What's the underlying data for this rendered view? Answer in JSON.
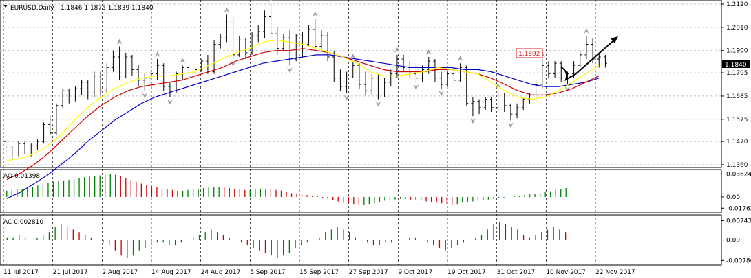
{
  "header": {
    "symbol": "EURUSD,Daily",
    "ohlc": "1.1846 1.1875 1.1839 1.1840"
  },
  "colors": {
    "fast_ma": "#ffff00",
    "mid_ma": "#cc0000",
    "slow_ma": "#0000cc",
    "up_bar": "#008000",
    "down_bar": "#cc0000",
    "price_tag": "#000000",
    "annotation": "#e02020"
  },
  "chart_data": [
    {
      "type": "bar",
      "title": "EURUSD,Daily",
      "subtitle": "1.1846 1.1875 1.1839 1.1840",
      "ylim": [
        1.136,
        1.212
      ],
      "y_ticks": [
        "1.2120",
        "1.2010",
        "1.1900",
        "1.1795",
        "1.1685",
        "1.1575",
        "1.1470",
        "1.1360"
      ],
      "x_ticks": [
        "11 Jul 2017",
        "21 Jul 2017",
        "2 Aug 2017",
        "14 Aug 2017",
        "24 Aug 2017",
        "5 Sep 2017",
        "15 Sep 2017",
        "27 Sep 2017",
        "9 Oct 2017",
        "19 Oct 2017",
        "31 Oct 2017",
        "10 Nov 2017",
        "22 Nov 2017"
      ],
      "last_price": "1.1840",
      "annotation_price": "1.1892",
      "ohlc": [
        [
          1.147,
          1.148,
          1.141,
          1.144
        ],
        [
          1.144,
          1.145,
          1.139,
          1.142
        ],
        [
          1.142,
          1.147,
          1.14,
          1.146
        ],
        [
          1.146,
          1.147,
          1.141,
          1.143
        ],
        [
          1.143,
          1.146,
          1.14,
          1.145
        ],
        [
          1.145,
          1.148,
          1.143,
          1.147
        ],
        [
          1.147,
          1.156,
          1.146,
          1.155
        ],
        [
          1.155,
          1.159,
          1.15,
          1.151
        ],
        [
          1.151,
          1.165,
          1.15,
          1.164
        ],
        [
          1.164,
          1.172,
          1.163,
          1.171
        ],
        [
          1.171,
          1.172,
          1.165,
          1.168
        ],
        [
          1.168,
          1.173,
          1.166,
          1.172
        ],
        [
          1.172,
          1.176,
          1.169,
          1.175
        ],
        [
          1.175,
          1.176,
          1.167,
          1.17
        ],
        [
          1.17,
          1.18,
          1.168,
          1.178
        ],
        [
          1.178,
          1.18,
          1.169,
          1.171
        ],
        [
          1.171,
          1.184,
          1.17,
          1.182
        ],
        [
          1.182,
          1.19,
          1.18,
          1.187
        ],
        [
          1.187,
          1.192,
          1.176,
          1.178
        ],
        [
          1.178,
          1.189,
          1.177,
          1.187
        ],
        [
          1.187,
          1.188,
          1.178,
          1.181
        ],
        [
          1.181,
          1.183,
          1.173,
          1.176
        ],
        [
          1.176,
          1.179,
          1.171,
          1.177
        ],
        [
          1.177,
          1.181,
          1.174,
          1.179
        ],
        [
          1.179,
          1.186,
          1.176,
          1.183
        ],
        [
          1.183,
          1.184,
          1.171,
          1.173
        ],
        [
          1.173,
          1.175,
          1.168,
          1.171
        ],
        [
          1.171,
          1.18,
          1.17,
          1.179
        ],
        [
          1.179,
          1.183,
          1.176,
          1.182
        ],
        [
          1.182,
          1.183,
          1.177,
          1.178
        ],
        [
          1.178,
          1.182,
          1.176,
          1.181
        ],
        [
          1.181,
          1.186,
          1.18,
          1.185
        ],
        [
          1.185,
          1.188,
          1.179,
          1.18
        ],
        [
          1.18,
          1.195,
          1.179,
          1.193
        ],
        [
          1.193,
          1.198,
          1.191,
          1.196
        ],
        [
          1.196,
          1.207,
          1.194,
          1.204
        ],
        [
          1.204,
          1.206,
          1.186,
          1.188
        ],
        [
          1.188,
          1.197,
          1.187,
          1.195
        ],
        [
          1.195,
          1.196,
          1.186,
          1.189
        ],
        [
          1.189,
          1.199,
          1.188,
          1.197
        ],
        [
          1.197,
          1.202,
          1.194,
          1.199
        ],
        [
          1.199,
          1.209,
          1.196,
          1.206
        ],
        [
          1.206,
          1.212,
          1.196,
          1.198
        ],
        [
          1.198,
          1.201,
          1.188,
          1.191
        ],
        [
          1.191,
          1.198,
          1.19,
          1.196
        ],
        [
          1.196,
          1.2,
          1.183,
          1.186
        ],
        [
          1.186,
          1.198,
          1.185,
          1.197
        ],
        [
          1.197,
          1.199,
          1.187,
          1.193
        ],
        [
          1.193,
          1.202,
          1.192,
          1.2
        ],
        [
          1.2,
          1.205,
          1.19,
          1.192
        ],
        [
          1.192,
          1.2,
          1.191,
          1.197
        ],
        [
          1.197,
          1.199,
          1.185,
          1.187
        ],
        [
          1.187,
          1.19,
          1.175,
          1.177
        ],
        [
          1.177,
          1.181,
          1.171,
          1.173
        ],
        [
          1.173,
          1.18,
          1.17,
          1.178
        ],
        [
          1.178,
          1.185,
          1.177,
          1.183
        ],
        [
          1.183,
          1.184,
          1.172,
          1.174
        ],
        [
          1.174,
          1.18,
          1.169,
          1.171
        ],
        [
          1.171,
          1.179,
          1.169,
          1.177
        ],
        [
          1.177,
          1.179,
          1.167,
          1.169
        ],
        [
          1.169,
          1.177,
          1.168,
          1.175
        ],
        [
          1.175,
          1.181,
          1.173,
          1.179
        ],
        [
          1.179,
          1.188,
          1.177,
          1.186
        ],
        [
          1.186,
          1.188,
          1.18,
          1.182
        ],
        [
          1.182,
          1.185,
          1.177,
          1.179
        ],
        [
          1.179,
          1.184,
          1.175,
          1.177
        ],
        [
          1.177,
          1.183,
          1.175,
          1.181
        ],
        [
          1.181,
          1.187,
          1.179,
          1.185
        ],
        [
          1.185,
          1.186,
          1.175,
          1.177
        ],
        [
          1.177,
          1.18,
          1.172,
          1.174
        ],
        [
          1.174,
          1.18,
          1.173,
          1.179
        ],
        [
          1.179,
          1.182,
          1.174,
          1.176
        ],
        [
          1.176,
          1.184,
          1.175,
          1.182
        ],
        [
          1.182,
          1.183,
          1.164,
          1.165
        ],
        [
          1.165,
          1.168,
          1.159,
          1.166
        ],
        [
          1.166,
          1.167,
          1.16,
          1.163
        ],
        [
          1.163,
          1.168,
          1.162,
          1.167
        ],
        [
          1.167,
          1.168,
          1.161,
          1.163
        ],
        [
          1.163,
          1.171,
          1.162,
          1.169
        ],
        [
          1.169,
          1.17,
          1.161,
          1.164
        ],
        [
          1.164,
          1.165,
          1.157,
          1.16
        ],
        [
          1.16,
          1.165,
          1.158,
          1.163
        ],
        [
          1.163,
          1.168,
          1.162,
          1.167
        ],
        [
          1.167,
          1.17,
          1.165,
          1.168
        ],
        [
          1.168,
          1.176,
          1.166,
          1.174
        ],
        [
          1.174,
          1.186,
          1.172,
          1.183
        ],
        [
          1.183,
          1.185,
          1.177,
          1.179
        ],
        [
          1.179,
          1.185,
          1.177,
          1.184
        ],
        [
          1.184,
          1.185,
          1.175,
          1.177
        ],
        [
          1.177,
          1.18,
          1.174,
          1.179
        ],
        [
          1.179,
          1.185,
          1.177,
          1.183
        ],
        [
          1.183,
          1.19,
          1.182,
          1.188
        ],
        [
          1.188,
          1.197,
          1.186,
          1.193
        ],
        [
          1.193,
          1.196,
          1.184,
          1.186
        ],
        [
          1.186,
          1.189,
          1.182,
          1.187
        ],
        [
          1.187,
          1.188,
          1.182,
          1.184
        ]
      ],
      "ma_fast": [
        1.138,
        1.139,
        1.141,
        1.145,
        1.15,
        1.157,
        1.163,
        1.168,
        1.172,
        1.175,
        1.177,
        1.178,
        1.178,
        1.179,
        1.18,
        1.183,
        1.186,
        1.189,
        1.191,
        1.194,
        1.195,
        1.194,
        1.193,
        1.191,
        1.189,
        1.187,
        1.184,
        1.18,
        1.178,
        1.178,
        1.179,
        1.18,
        1.182,
        1.181,
        1.18,
        1.179,
        1.175,
        1.171,
        1.168,
        1.167,
        1.168,
        1.171,
        1.175,
        1.179,
        1.183
      ],
      "ma_mid": [
        1.129,
        1.132,
        1.136,
        1.141,
        1.147,
        1.153,
        1.159,
        1.164,
        1.168,
        1.171,
        1.173,
        1.174,
        1.175,
        1.176,
        1.178,
        1.18,
        1.182,
        1.185,
        1.187,
        1.189,
        1.19,
        1.19,
        1.191,
        1.19,
        1.189,
        1.187,
        1.185,
        1.183,
        1.181,
        1.18,
        1.18,
        1.18,
        1.181,
        1.181,
        1.18,
        1.179,
        1.177,
        1.174,
        1.171,
        1.169,
        1.169,
        1.17,
        1.172,
        1.175,
        1.178
      ],
      "ma_slow": [
        1.12,
        1.123,
        1.127,
        1.131,
        1.136,
        1.141,
        1.147,
        1.152,
        1.157,
        1.161,
        1.165,
        1.168,
        1.17,
        1.172,
        1.174,
        1.176,
        1.178,
        1.18,
        1.182,
        1.184,
        1.185,
        1.186,
        1.187,
        1.188,
        1.188,
        1.187,
        1.186,
        1.185,
        1.184,
        1.183,
        1.182,
        1.182,
        1.182,
        1.182,
        1.181,
        1.181,
        1.18,
        1.178,
        1.176,
        1.174,
        1.173,
        1.173,
        1.174,
        1.175,
        1.177
      ]
    },
    {
      "type": "bar",
      "title": "AO 0.01398",
      "ylim": [
        -0.0195,
        0.0378
      ],
      "y_ticks": [
        "0.03624",
        "0.00",
        "-0.01762"
      ],
      "values": [
        0.01,
        0.011,
        0.012,
        0.013,
        0.014,
        0.016,
        0.018,
        0.02,
        0.022,
        0.024,
        0.025,
        0.026,
        0.027,
        0.028,
        0.03,
        0.031,
        0.032,
        0.033,
        0.034,
        0.035,
        0.036,
        0.035,
        0.033,
        0.03,
        0.027,
        0.024,
        0.021,
        0.019,
        0.017,
        0.015,
        0.013,
        0.012,
        0.011,
        0.01,
        0.01,
        0.011,
        0.012,
        0.013,
        0.014,
        0.015,
        0.015,
        0.016,
        0.015,
        0.014,
        0.013,
        0.012,
        0.011,
        0.011,
        0.012,
        0.013,
        0.013,
        0.012,
        0.011,
        0.01,
        0.008,
        0.006,
        0.005,
        0.004,
        0.003,
        0.002,
        0.001,
        -0.001,
        -0.003,
        -0.005,
        -0.007,
        -0.009,
        -0.01,
        -0.011,
        -0.012,
        -0.012,
        -0.011,
        -0.01,
        -0.008,
        -0.006,
        -0.005,
        -0.004,
        -0.003,
        -0.003,
        -0.004,
        -0.005,
        -0.006,
        -0.007,
        -0.008,
        -0.009,
        -0.01,
        -0.011,
        -0.012,
        -0.011,
        -0.009,
        -0.008,
        -0.007,
        -0.006,
        -0.005,
        -0.004,
        -0.003,
        -0.002,
        -0.001,
        0.0,
        0.001,
        0.002,
        0.003,
        0.004,
        0.005,
        0.006,
        0.008,
        0.009,
        0.011,
        0.012,
        0.014
      ]
    },
    {
      "type": "bar",
      "title": "AC 0.002810",
      "ylim": [
        -0.0083,
        0.0078
      ],
      "y_ticks": [
        "0.007433",
        "0.00",
        "-0.00786"
      ],
      "values": [
        0.001,
        0.001,
        0.002,
        0.001,
        0.0,
        0.001,
        0.002,
        0.003,
        0.005,
        0.006,
        0.005,
        0.004,
        0.003,
        0.002,
        0.001,
        0.0,
        -0.001,
        -0.002,
        -0.004,
        -0.006,
        -0.007,
        -0.006,
        -0.004,
        -0.003,
        -0.002,
        -0.001,
        -0.001,
        -0.002,
        -0.002,
        -0.001,
        0.0,
        0.001,
        0.002,
        0.003,
        0.004,
        0.003,
        0.002,
        0.001,
        0.0,
        -0.001,
        -0.002,
        -0.003,
        -0.004,
        -0.005,
        -0.006,
        -0.007,
        -0.006,
        -0.005,
        -0.003,
        -0.002,
        -0.001,
        0.0,
        0.001,
        0.003,
        0.004,
        0.005,
        0.004,
        0.003,
        0.001,
        0.0,
        -0.001,
        -0.002,
        -0.002,
        -0.001,
        -0.001,
        0.0,
        0.0,
        0.001,
        0.001,
        0.0,
        -0.001,
        -0.002,
        -0.003,
        -0.004,
        -0.003,
        -0.002,
        -0.001,
        0.0,
        0.001,
        0.002,
        0.004,
        0.006,
        0.007,
        0.006,
        0.005,
        0.004,
        0.002,
        0.001,
        0.002,
        0.003,
        0.004,
        0.005,
        0.004,
        0.003
      ]
    }
  ]
}
